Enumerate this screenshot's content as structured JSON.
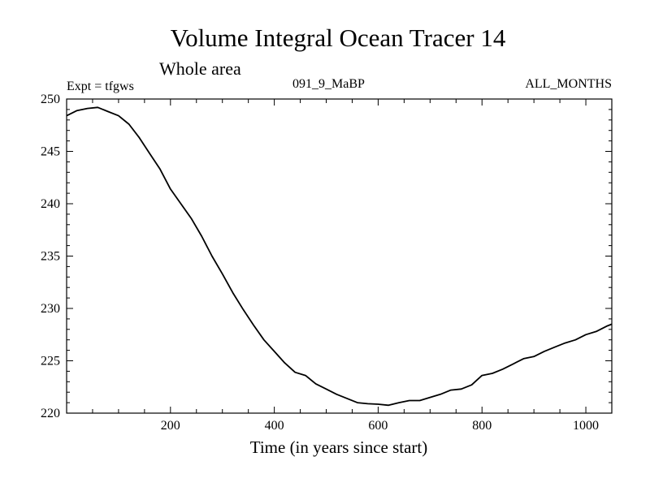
{
  "chart_data": {
    "type": "line",
    "title": "Volume Integral Ocean Tracer 14",
    "subtitle": "Whole area",
    "annotations": {
      "experiment": "Expt = tfgws",
      "run": "091_9_MaBP",
      "months": "ALL_MONTHS"
    },
    "xlabel": "Time (in years since start)",
    "ylabel": "",
    "xlim": [
      0,
      1050
    ],
    "ylim": [
      220,
      250
    ],
    "x_ticks": [
      200,
      400,
      600,
      800,
      1000
    ],
    "y_ticks": [
      220,
      225,
      230,
      235,
      240,
      245,
      250
    ],
    "grid": false,
    "series": [
      {
        "color": "#000000",
        "x": [
          0,
          20,
          40,
          60,
          80,
          100,
          120,
          140,
          160,
          180,
          200,
          220,
          240,
          260,
          280,
          300,
          320,
          340,
          360,
          380,
          400,
          420,
          440,
          460,
          480,
          500,
          520,
          540,
          560,
          580,
          600,
          620,
          640,
          660,
          680,
          700,
          720,
          740,
          760,
          780,
          800,
          820,
          840,
          860,
          880,
          900,
          920,
          940,
          960,
          980,
          1000,
          1020,
          1040,
          1050
        ],
        "y": [
          248.4,
          248.9,
          249.1,
          249.2,
          248.8,
          248.4,
          247.6,
          246.3,
          244.8,
          243.3,
          241.4,
          240.0,
          238.6,
          236.9,
          235.0,
          233.3,
          231.5,
          229.9,
          228.4,
          227.0,
          225.9,
          224.8,
          223.9,
          223.6,
          222.8,
          222.3,
          221.8,
          221.4,
          221.0,
          220.9,
          220.85,
          220.75,
          221.0,
          221.2,
          221.2,
          221.5,
          221.8,
          222.2,
          222.3,
          222.7,
          223.6,
          223.8,
          224.2,
          224.7,
          225.2,
          225.4,
          225.9,
          226.3,
          226.7,
          227.0,
          227.5,
          227.8,
          228.3,
          228.5
        ]
      }
    ]
  }
}
